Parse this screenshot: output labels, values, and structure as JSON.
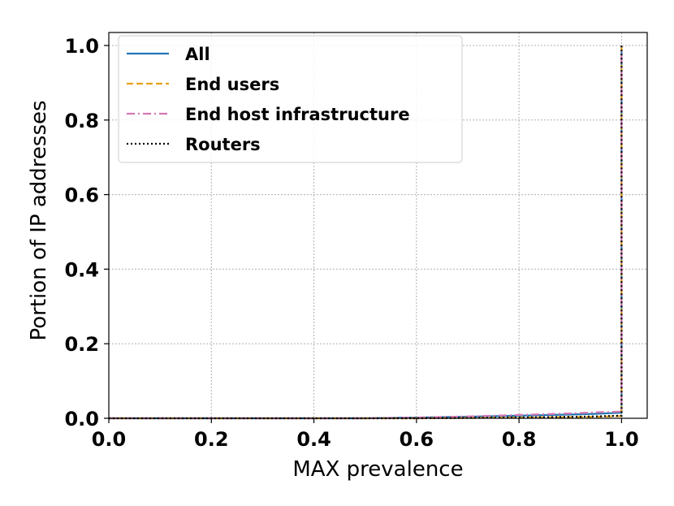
{
  "chart_data": {
    "type": "line",
    "xlabel": "MAX prevalence",
    "ylabel": "Portion of IP addresses",
    "xlim": [
      0.0,
      1.05
    ],
    "ylim": [
      0.0,
      1.0
    ],
    "x_ticks": [
      "0.0",
      "0.2",
      "0.4",
      "0.6",
      "0.8",
      "1.0"
    ],
    "y_ticks": [
      "0.0",
      "0.2",
      "0.4",
      "0.6",
      "0.8",
      "1.0"
    ],
    "grid": true,
    "legend_position": "top-left",
    "series": [
      {
        "name": "All",
        "color": "#1f77b4",
        "style": "solid",
        "x": [
          0.0,
          0.3,
          0.5,
          0.6,
          0.7,
          0.8,
          0.9,
          0.95,
          0.999,
          1.0,
          1.0
        ],
        "y": [
          0.0,
          0.0,
          0.0,
          0.002,
          0.004,
          0.007,
          0.01,
          0.012,
          0.015,
          0.015,
          1.0
        ]
      },
      {
        "name": "End users",
        "color": "#e6a117",
        "style": "dashed",
        "x": [
          0.0,
          0.3,
          0.5,
          0.6,
          0.7,
          0.8,
          0.9,
          0.95,
          0.999,
          1.0,
          1.0
        ],
        "y": [
          0.0,
          0.0,
          0.0,
          0.0,
          0.001,
          0.002,
          0.003,
          0.004,
          0.006,
          0.006,
          1.0
        ]
      },
      {
        "name": "End host infrastructure",
        "color": "#d678b5",
        "style": "dashdot",
        "x": [
          0.0,
          0.3,
          0.5,
          0.6,
          0.7,
          0.8,
          0.9,
          0.95,
          0.999,
          1.0,
          1.0
        ],
        "y": [
          0.0,
          0.0,
          0.0,
          0.002,
          0.005,
          0.009,
          0.013,
          0.016,
          0.018,
          0.018,
          1.0
        ]
      },
      {
        "name": "Routers",
        "color": "#000000",
        "style": "dotted",
        "x": [
          0.0,
          0.3,
          0.5,
          0.6,
          0.7,
          0.8,
          0.9,
          0.95,
          0.999,
          1.0,
          1.0
        ],
        "y": [
          0.0,
          0.0,
          0.0,
          0.0,
          0.001,
          0.002,
          0.004,
          0.005,
          0.007,
          0.007,
          1.0
        ]
      }
    ]
  }
}
